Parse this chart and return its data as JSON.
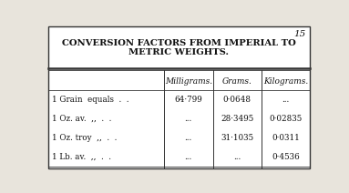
{
  "title_line1": "CONVERSION FACTORS FROM IMPERIAL TO",
  "title_line2": "METRIC WEIGHTS.",
  "page_number": "15",
  "col_headers": [
    "Milligrams.",
    "Grams.",
    "Kilograms."
  ],
  "row_labels": [
    "1 Grain  equals  .  .",
    "1 Oz. av.  ,,  .  .",
    "1 Oz. troy  ,,  .  .",
    "1 Lb. av.  ,,  .  ."
  ],
  "milligrams": [
    "64·799",
    "...",
    "...",
    "..."
  ],
  "grams": [
    "0·0648",
    "28·3495",
    "31·1035",
    "..."
  ],
  "kilograms": [
    "...",
    "0·02835",
    "0·0311",
    "0·4536"
  ],
  "bg_color": "#ffffff",
  "outer_bg": "#e8e4dc",
  "border_color": "#333333",
  "text_color": "#111111",
  "title_fontsize": 7.2,
  "col_header_fontsize": 6.5,
  "row_fontsize": 6.3,
  "page_num_fontsize": 7.5
}
